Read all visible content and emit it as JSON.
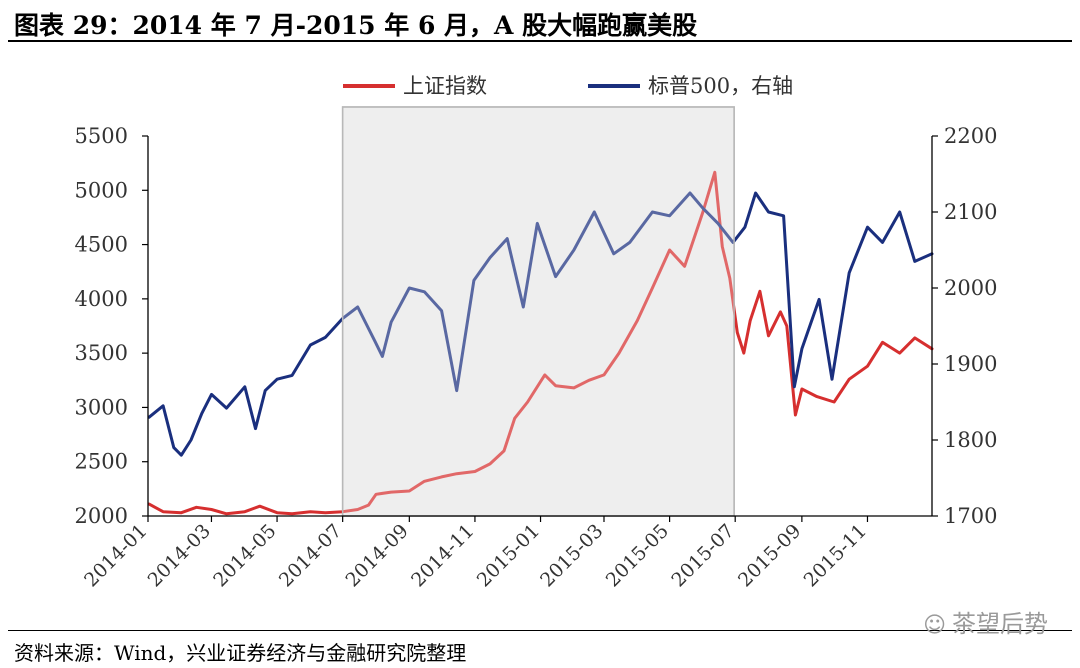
{
  "header": {
    "title": "图表 29：2014 年 7 月-2015 年 6 月，A 股大幅跑赢美股"
  },
  "footer": {
    "source": "资料来源：Wind，兴业证券经济与金融研究院整理",
    "watermark": "茶望后势",
    "watermark_icon": "wechat-icon"
  },
  "chart_data": {
    "type": "line",
    "legend_position": "top-center",
    "grid": false,
    "x_ticks": [
      "2014-01",
      "2014-03",
      "2014-05",
      "2014-07",
      "2014-09",
      "2014-11",
      "2015-01",
      "2015-03",
      "2015-05",
      "2015-07",
      "2015-09",
      "2015-11"
    ],
    "x_range": [
      "2014-01-01",
      "2015-12-31"
    ],
    "highlight": {
      "start": "2014-07-01",
      "end": "2015-06-30",
      "color": "#e8e8e8"
    },
    "y_left": {
      "ylim": [
        2000,
        5500
      ],
      "ticks": [
        "2000",
        "2500",
        "3000",
        "3500",
        "4000",
        "4500",
        "5000",
        "5500"
      ]
    },
    "y_right": {
      "ylim": [
        1700,
        2200
      ],
      "ticks": [
        "1700",
        "1800",
        "1900",
        "2000",
        "2100",
        "2200"
      ]
    },
    "series": [
      {
        "name": "上证指数",
        "axis": "left",
        "color": "#d62f2f",
        "points": [
          [
            "2014-01-02",
            2110
          ],
          [
            "2014-01-15",
            2040
          ],
          [
            "2014-02-01",
            2030
          ],
          [
            "2014-02-15",
            2080
          ],
          [
            "2014-03-01",
            2060
          ],
          [
            "2014-03-15",
            2020
          ],
          [
            "2014-04-01",
            2040
          ],
          [
            "2014-04-15",
            2090
          ],
          [
            "2014-05-01",
            2030
          ],
          [
            "2014-05-15",
            2020
          ],
          [
            "2014-06-01",
            2040
          ],
          [
            "2014-06-15",
            2030
          ],
          [
            "2014-07-01",
            2040
          ],
          [
            "2014-07-15",
            2060
          ],
          [
            "2014-07-25",
            2100
          ],
          [
            "2014-08-01",
            2200
          ],
          [
            "2014-08-15",
            2220
          ],
          [
            "2014-09-01",
            2230
          ],
          [
            "2014-09-15",
            2320
          ],
          [
            "2014-10-01",
            2360
          ],
          [
            "2014-10-15",
            2390
          ],
          [
            "2014-11-01",
            2410
          ],
          [
            "2014-11-15",
            2480
          ],
          [
            "2014-11-28",
            2600
          ],
          [
            "2014-12-08",
            2900
          ],
          [
            "2014-12-20",
            3050
          ],
          [
            "2015-01-05",
            3300
          ],
          [
            "2015-01-15",
            3200
          ],
          [
            "2015-02-01",
            3180
          ],
          [
            "2015-02-15",
            3250
          ],
          [
            "2015-03-01",
            3300
          ],
          [
            "2015-03-15",
            3500
          ],
          [
            "2015-04-01",
            3800
          ],
          [
            "2015-04-15",
            4100
          ],
          [
            "2015-05-01",
            4450
          ],
          [
            "2015-05-15",
            4300
          ],
          [
            "2015-06-01",
            4800
          ],
          [
            "2015-06-12",
            5166
          ],
          [
            "2015-06-19",
            4480
          ],
          [
            "2015-06-26",
            4190
          ],
          [
            "2015-07-03",
            3690
          ],
          [
            "2015-07-09",
            3500
          ],
          [
            "2015-07-15",
            3800
          ],
          [
            "2015-07-24",
            4070
          ],
          [
            "2015-08-01",
            3660
          ],
          [
            "2015-08-12",
            3880
          ],
          [
            "2015-08-18",
            3750
          ],
          [
            "2015-08-26",
            2930
          ],
          [
            "2015-09-01",
            3170
          ],
          [
            "2015-09-15",
            3100
          ],
          [
            "2015-10-01",
            3050
          ],
          [
            "2015-10-15",
            3260
          ],
          [
            "2015-11-01",
            3380
          ],
          [
            "2015-11-15",
            3600
          ],
          [
            "2015-12-01",
            3500
          ],
          [
            "2015-12-15",
            3640
          ],
          [
            "2015-12-31",
            3540
          ]
        ]
      },
      {
        "name": "标普500，右轴",
        "axis": "right",
        "color": "#1a2f7e",
        "points": [
          [
            "2014-01-02",
            1830
          ],
          [
            "2014-01-15",
            1845
          ],
          [
            "2014-01-25",
            1790
          ],
          [
            "2014-02-01",
            1780
          ],
          [
            "2014-02-10",
            1800
          ],
          [
            "2014-02-20",
            1835
          ],
          [
            "2014-03-01",
            1860
          ],
          [
            "2014-03-15",
            1842
          ],
          [
            "2014-04-01",
            1870
          ],
          [
            "2014-04-11",
            1815
          ],
          [
            "2014-04-20",
            1865
          ],
          [
            "2014-05-01",
            1880
          ],
          [
            "2014-05-15",
            1885
          ],
          [
            "2014-06-01",
            1925
          ],
          [
            "2014-06-15",
            1935
          ],
          [
            "2014-07-01",
            1960
          ],
          [
            "2014-07-15",
            1975
          ],
          [
            "2014-07-31",
            1930
          ],
          [
            "2014-08-07",
            1910
          ],
          [
            "2014-08-15",
            1955
          ],
          [
            "2014-09-01",
            2000
          ],
          [
            "2014-09-15",
            1995
          ],
          [
            "2014-10-01",
            1970
          ],
          [
            "2014-10-15",
            1865
          ],
          [
            "2014-10-31",
            2010
          ],
          [
            "2014-11-15",
            2040
          ],
          [
            "2014-12-01",
            2065
          ],
          [
            "2014-12-16",
            1975
          ],
          [
            "2014-12-29",
            2085
          ],
          [
            "2015-01-15",
            2015
          ],
          [
            "2015-02-01",
            2050
          ],
          [
            "2015-02-20",
            2100
          ],
          [
            "2015-03-10",
            2045
          ],
          [
            "2015-03-25",
            2060
          ],
          [
            "2015-04-15",
            2100
          ],
          [
            "2015-05-01",
            2095
          ],
          [
            "2015-05-20",
            2125
          ],
          [
            "2015-06-01",
            2105
          ],
          [
            "2015-06-15",
            2085
          ],
          [
            "2015-06-29",
            2060
          ],
          [
            "2015-07-10",
            2080
          ],
          [
            "2015-07-20",
            2125
          ],
          [
            "2015-08-01",
            2100
          ],
          [
            "2015-08-15",
            2095
          ],
          [
            "2015-08-25",
            1870
          ],
          [
            "2015-09-01",
            1920
          ],
          [
            "2015-09-17",
            1985
          ],
          [
            "2015-09-29",
            1880
          ],
          [
            "2015-10-15",
            2020
          ],
          [
            "2015-11-01",
            2080
          ],
          [
            "2015-11-15",
            2060
          ],
          [
            "2015-12-01",
            2100
          ],
          [
            "2015-12-15",
            2035
          ],
          [
            "2015-12-31",
            2045
          ]
        ]
      }
    ]
  }
}
